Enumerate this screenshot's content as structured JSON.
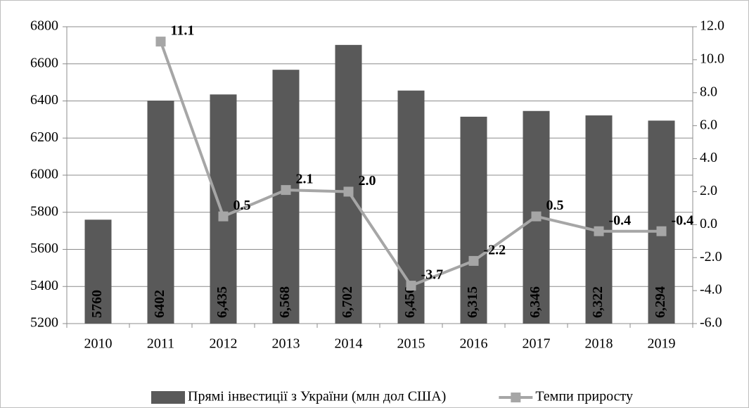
{
  "chart_data": {
    "type": "bar",
    "categories": [
      "2010",
      "2011",
      "2012",
      "2013",
      "2014",
      "2015",
      "2016",
      "2017",
      "2018",
      "2019"
    ],
    "series": [
      {
        "name": "Прямі інвестиції з України (млн дол США)",
        "type": "bar",
        "color": "#595959",
        "values": [
          5760,
          6402,
          6435,
          6568,
          6702,
          6456,
          6315,
          6346,
          6322,
          6294
        ],
        "value_labels": [
          "5760",
          "6402",
          "6,435",
          "6,568",
          "6,702",
          "6,456",
          "6,315",
          "6,346",
          "6,322",
          "6,294"
        ]
      },
      {
        "name": "Темпи приросту",
        "type": "line",
        "axis": "y2",
        "color": "#a6a6a6",
        "values": [
          null,
          11.1,
          0.5,
          2.1,
          2.0,
          -3.7,
          -2.2,
          0.5,
          -0.4,
          -0.4
        ],
        "value_labels": [
          null,
          "11.1",
          "0.5",
          "2.1",
          "2.0",
          "-3.7",
          "-2.2",
          "0.5",
          "-0.4",
          "-0.4"
        ]
      }
    ],
    "ylim": [
      5200,
      6800
    ],
    "yticks": [
      5200,
      5400,
      5600,
      5800,
      6000,
      6200,
      6400,
      6600,
      6800
    ],
    "y2lim": [
      -6,
      12
    ],
    "y2ticks": [
      {
        "value": -6,
        "label": "-6.0"
      },
      {
        "value": -4,
        "label": "-4.0"
      },
      {
        "value": -2,
        "label": "-2.0"
      },
      {
        "value": 0,
        "label": "0.0"
      },
      {
        "value": 2,
        "label": "2.0"
      },
      {
        "value": 4,
        "label": "4.0"
      },
      {
        "value": 6,
        "label": "6.0"
      },
      {
        "value": 8,
        "label": "8.0"
      },
      {
        "value": 10,
        "label": "10.0"
      },
      {
        "value": 12,
        "label": "12.0"
      }
    ],
    "grid": true,
    "legend": "bottom"
  }
}
